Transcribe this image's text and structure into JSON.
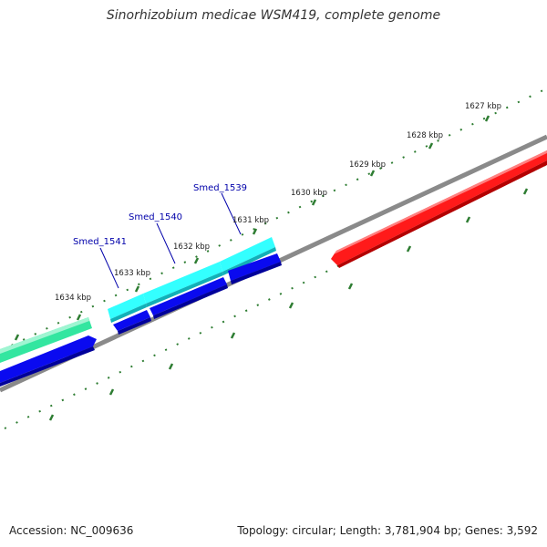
{
  "title": "Sinorhizobium medicae WSM419, complete genome",
  "footer": {
    "accession": "Accession: NC_009636",
    "summary": "Topology: circular; Length: 3,781,904 bp; Genes: 3,592"
  },
  "ticks": [
    {
      "label": "1627 kbp"
    },
    {
      "label": "1628 kbp"
    },
    {
      "label": "1629 kbp"
    },
    {
      "label": "1630 kbp"
    },
    {
      "label": "1631 kbp"
    },
    {
      "label": "1632 kbp"
    },
    {
      "label": "1633 kbp"
    },
    {
      "label": "1634 kbp"
    }
  ],
  "gene_labels": [
    {
      "label": "Smed_1539"
    },
    {
      "label": "Smed_1540"
    },
    {
      "label": "Smed_1541"
    }
  ],
  "colors": {
    "backbone": "#7f7f7f",
    "tick": "#2e7d32",
    "cds": "#0000ee",
    "gene": "#33ffff",
    "rrna_feature": "#ff0000",
    "other_feature": "#33ee99",
    "gene_label": "#0000aa"
  }
}
